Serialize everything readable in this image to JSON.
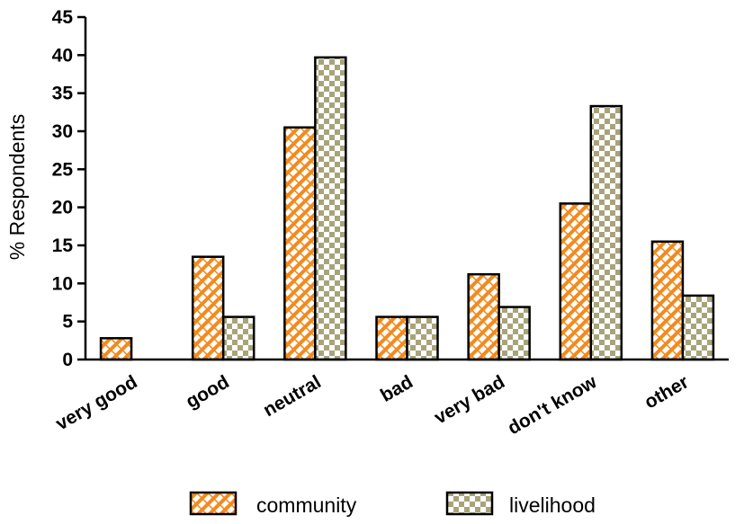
{
  "chart_data": {
    "type": "bar",
    "ylabel": "% Respondents",
    "xlabel": "",
    "ylim": [
      0,
      45
    ],
    "yticks": [
      0,
      5,
      10,
      15,
      20,
      25,
      30,
      35,
      40,
      45
    ],
    "categories": [
      "very good",
      "good",
      "neutral",
      "bad",
      "very bad",
      "don't know",
      "other"
    ],
    "series": [
      {
        "name": "community",
        "values": [
          2.8,
          13.5,
          30.5,
          5.6,
          11.2,
          20.5,
          15.5
        ],
        "color": "#f28a1e",
        "pattern": "diagonal-brick"
      },
      {
        "name": "livelihood",
        "values": [
          0,
          5.6,
          39.7,
          5.6,
          6.9,
          33.3,
          8.4
        ],
        "color": "#a9a37a",
        "pattern": "checkerboard"
      }
    ],
    "legend": "bottom",
    "grid": false
  }
}
